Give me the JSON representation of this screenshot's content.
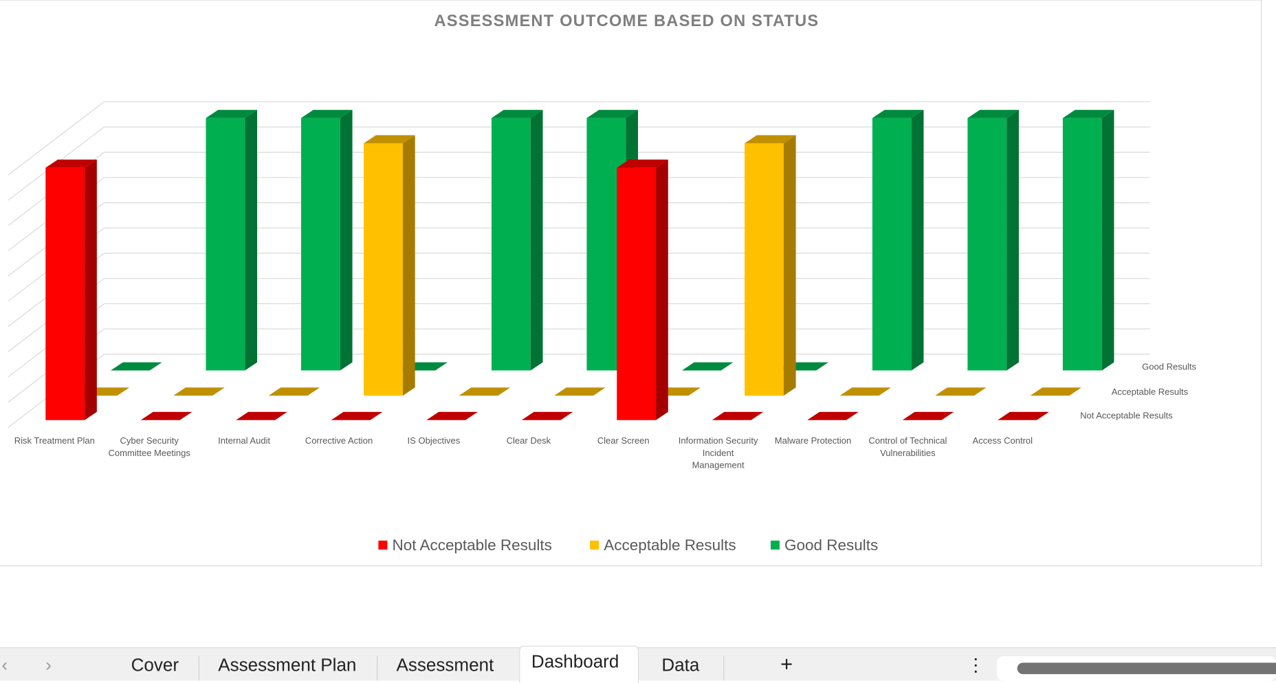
{
  "chart_data": {
    "type": "bar3d",
    "title": "ASSESSMENT OUTCOME BASED ON STATUS",
    "categories": [
      "Risk Treatment Plan",
      "Cyber Security Committee Meetings",
      "Internal Audit",
      "Corrective Action",
      "IS Objectives",
      "Clear Desk",
      "Clear Screen",
      "Information Security Incident Management",
      "Malware Protection",
      "Control of Technical Vulnerabilities",
      "Access Control"
    ],
    "category_lines": [
      [
        "Risk Treatment Plan"
      ],
      [
        "Cyber Security",
        "Committee Meetings"
      ],
      [
        "Internal Audit"
      ],
      [
        "Corrective Action"
      ],
      [
        "IS Objectives"
      ],
      [
        "Clear Desk"
      ],
      [
        "Clear Screen"
      ],
      [
        "Information Security",
        "Incident",
        "Management"
      ],
      [
        "Malware Protection"
      ],
      [
        "Control of Technical",
        "Vulnerabilities"
      ],
      [
        "Access Control"
      ]
    ],
    "series": [
      {
        "name": "Not Acceptable Results",
        "color": "#ff0000",
        "side": "#a50000",
        "top": "#c00000",
        "values": [
          10,
          0,
          0,
          0,
          0,
          0,
          10,
          0,
          0,
          0,
          0
        ]
      },
      {
        "name": "Acceptable Results",
        "color": "#ffc000",
        "side": "#a67c00",
        "top": "#c09000",
        "values": [
          0,
          0,
          0,
          10,
          0,
          0,
          0,
          10,
          0,
          0,
          0
        ]
      },
      {
        "name": "Good Results",
        "color": "#00b050",
        "side": "#007233",
        "top": "#008a3e",
        "values": [
          0,
          10,
          10,
          0,
          10,
          10,
          0,
          0,
          10,
          10,
          10
        ]
      }
    ],
    "ylim": [
      0,
      11
    ],
    "grid": true,
    "axis_labels_shown": false,
    "legend_position": "bottom"
  },
  "sheet_tabs": {
    "prev": "‹",
    "next": "›",
    "tabs": [
      "Cover",
      "Assessment Plan",
      "Assessment",
      "Dashboard",
      "Data"
    ],
    "active": "Dashboard",
    "add": "+",
    "more": "⋮"
  }
}
